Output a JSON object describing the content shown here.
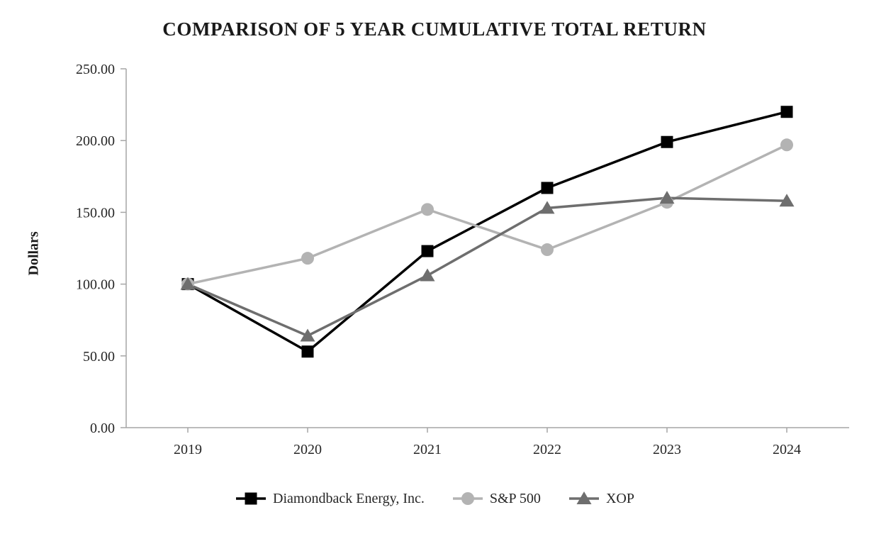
{
  "chart_data": {
    "type": "line",
    "title": "COMPARISON OF 5 YEAR CUMULATIVE TOTAL RETURN",
    "xlabel": "",
    "ylabel": "Dollars",
    "categories": [
      "2019",
      "2020",
      "2021",
      "2022",
      "2023",
      "2024"
    ],
    "ylim": [
      0,
      250
    ],
    "y_ticks": [
      0,
      50,
      100,
      150,
      200,
      250
    ],
    "y_tick_labels": [
      "0.00",
      "50.00",
      "100.00",
      "150.00",
      "200.00",
      "250.00"
    ],
    "grid": false,
    "legend_position": "bottom",
    "axis_color": "#a6a6a6",
    "series": [
      {
        "name": "Diamondback Energy, Inc.",
        "marker": "square",
        "color": "#000000",
        "values": [
          100.0,
          53.0,
          123.0,
          167.0,
          199.0,
          220.0
        ]
      },
      {
        "name": "S&P 500",
        "marker": "circle",
        "color": "#b3b3b3",
        "values": [
          100.0,
          118.0,
          152.0,
          124.0,
          157.0,
          197.0
        ]
      },
      {
        "name": "XOP",
        "marker": "triangle",
        "color": "#6e6e6e",
        "values": [
          100.0,
          64.0,
          106.0,
          153.0,
          160.0,
          158.0
        ]
      }
    ]
  }
}
